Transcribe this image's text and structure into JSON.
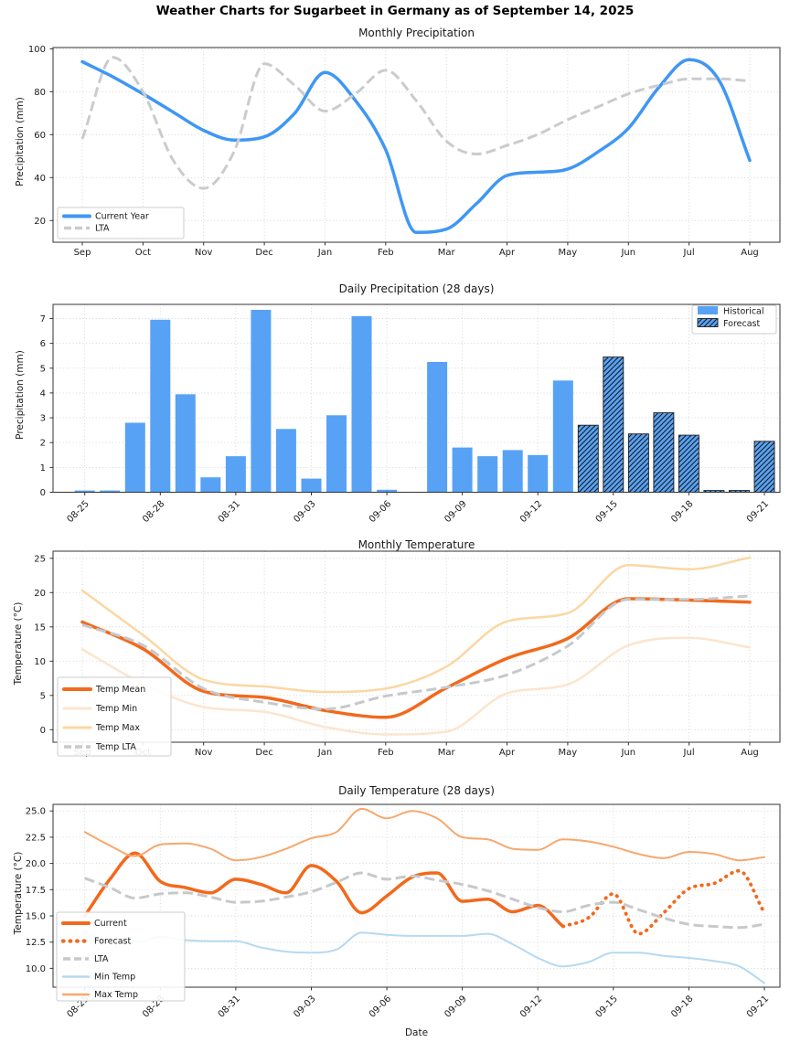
{
  "title": "Weather Charts for Sugarbeet in Germany as of September 14, 2025",
  "chart_data": [
    {
      "id": "monthly-precipitation",
      "type": "line",
      "title": "Monthly Precipitation",
      "ylabel": "Precipitation (mm)",
      "x_labels": [
        "Sep",
        "Oct",
        "Nov",
        "Dec",
        "Jan",
        "Feb",
        "Mar",
        "Apr",
        "May",
        "Jun",
        "Jul",
        "Aug"
      ],
      "yticks": [
        20,
        40,
        60,
        80,
        100
      ],
      "ylim": [
        9.9,
        100.6
      ],
      "legend_position": "lower left",
      "sample_step_months": 0.5,
      "series": [
        {
          "name": "Current Year",
          "color": "#3f97f3",
          "style": "solid",
          "width": 3.5,
          "monthly_values": [
            94,
            79,
            62,
            59,
            89,
            53,
            16,
            41,
            44,
            63,
            95,
            48
          ],
          "samples": [
            94,
            87,
            79,
            70.5,
            62,
            57.5,
            59,
            70,
            89,
            76,
            53,
            14.5,
            16,
            28,
            41,
            42.5,
            44,
            52,
            63,
            82,
            95,
            85,
            48
          ]
        },
        {
          "name": "LTA",
          "color": "#c9cccf",
          "style": "dashed",
          "width": 3,
          "monthly_values": [
            58,
            80,
            35,
            93,
            71,
            90,
            57,
            55,
            67,
            79,
            86,
            85
          ],
          "samples": [
            58,
            96,
            80,
            48,
            35,
            52,
            93,
            83,
            71,
            79,
            90,
            76,
            57,
            51,
            55,
            60,
            67,
            73,
            79,
            83,
            86,
            86,
            85
          ]
        }
      ]
    },
    {
      "id": "daily-precipitation",
      "type": "bar",
      "title": "Daily Precipitation (28 days)",
      "ylabel": "Precipitation (mm)",
      "dates": [
        "08-25",
        "08-26",
        "08-27",
        "08-28",
        "08-29",
        "08-30",
        "08-31",
        "09-01",
        "09-02",
        "09-03",
        "09-04",
        "09-05",
        "09-06",
        "09-07",
        "09-08",
        "09-09",
        "09-10",
        "09-11",
        "09-12",
        "09-13",
        "09-14",
        "09-15",
        "09-16",
        "09-17",
        "09-18",
        "09-19",
        "09-20",
        "09-21"
      ],
      "xtick_labels": [
        "08-25",
        "08-28",
        "08-31",
        "09-03",
        "09-06",
        "09-09",
        "09-12",
        "09-15",
        "09-18",
        "09-21"
      ],
      "xtick_indices": [
        0,
        3,
        6,
        9,
        12,
        15,
        18,
        21,
        24,
        27
      ],
      "yticks": [
        0,
        1,
        2,
        3,
        4,
        5,
        6,
        7
      ],
      "ylim": [
        0,
        7.57
      ],
      "values": [
        0.07,
        0.07,
        2.8,
        6.95,
        3.95,
        0.6,
        1.45,
        7.35,
        2.55,
        0.55,
        3.1,
        7.1,
        0.1,
        0,
        5.25,
        1.8,
        1.45,
        1.7,
        1.5,
        4.5,
        2.7,
        5.45,
        2.35,
        3.2,
        2.3,
        0.07,
        0.07,
        2.05
      ],
      "historical_count": 20,
      "bar_color": "#57a2f5",
      "hatch_color": "#1c1c1c",
      "legend": [
        {
          "name": "Historical",
          "swatch": "solid"
        },
        {
          "name": "Forecast",
          "swatch": "hatched"
        }
      ],
      "legend_position": "upper right"
    },
    {
      "id": "monthly-temperature",
      "type": "line",
      "title": "Monthly Temperature",
      "ylabel": "Temperature (°C)",
      "x_labels": [
        "Sep",
        "Oct",
        "Nov",
        "Dec",
        "Jan",
        "Feb",
        "Mar",
        "Apr",
        "May",
        "Jun",
        "Jul",
        "Aug"
      ],
      "yticks": [
        0,
        5,
        10,
        15,
        20,
        25
      ],
      "ylim": [
        -1.83,
        26.04
      ],
      "legend_position": "lower left",
      "series": [
        {
          "name": "Temp Mean",
          "color": "#f2691c",
          "style": "solid",
          "width": 3.5,
          "values": [
            15.7,
            11.8,
            5.6,
            4.7,
            2.8,
            1.8,
            6.1,
            10.4,
            13.3,
            19.1,
            18.9,
            18.6
          ]
        },
        {
          "name": "Temp Min",
          "color": "#fce5ce",
          "style": "solid",
          "width": 2.5,
          "values": [
            11.7,
            6.7,
            3.3,
            2.6,
            0.4,
            -0.7,
            -0.3,
            5.3,
            6.6,
            12.3,
            13.4,
            12.0
          ]
        },
        {
          "name": "Temp Max",
          "color": "#fbd7a2",
          "style": "solid",
          "width": 2.5,
          "values": [
            20.3,
            13.8,
            7.3,
            6.3,
            5.5,
            6.0,
            9.2,
            15.8,
            17.0,
            24.0,
            23.4,
            25.1
          ]
        },
        {
          "name": "Temp LTA",
          "color": "#c6c9cc",
          "style": "dashed",
          "width": 3,
          "values": [
            15.3,
            12.3,
            6.0,
            4.0,
            3.0,
            4.9,
            6.2,
            8.0,
            12.2,
            19.0,
            19.0,
            19.5
          ]
        }
      ]
    },
    {
      "id": "daily-temperature",
      "type": "line",
      "title": "Daily Temperature (28 days)",
      "ylabel": "Temperature (°C)",
      "xlabel": "Date",
      "dates": [
        "08-25",
        "08-26",
        "08-27",
        "08-28",
        "08-29",
        "08-30",
        "08-31",
        "09-01",
        "09-02",
        "09-03",
        "09-04",
        "09-05",
        "09-06",
        "09-07",
        "09-08",
        "09-09",
        "09-10",
        "09-11",
        "09-12",
        "09-13",
        "09-14",
        "09-15",
        "09-16",
        "09-17",
        "09-18",
        "09-19",
        "09-20",
        "09-21"
      ],
      "xtick_labels": [
        "08-25",
        "08-28",
        "08-31",
        "09-03",
        "09-06",
        "09-09",
        "09-12",
        "09-15",
        "09-18",
        "09-21"
      ],
      "xtick_indices": [
        0,
        3,
        6,
        9,
        12,
        15,
        18,
        21,
        24,
        27
      ],
      "yticks": [
        10.0,
        12.5,
        15.0,
        17.5,
        20.0,
        22.5,
        25.0
      ],
      "ytick_decimals": 1,
      "ylim": [
        8.21,
        25.63
      ],
      "legend_position": "lower left",
      "series": [
        {
          "name": "Current",
          "color": "#f2691c",
          "style": "solid",
          "width": 3.5,
          "start_index": 0,
          "values": [
            15.0,
            18.5,
            21.0,
            18.3,
            17.7,
            17.2,
            18.5,
            18.0,
            17.2,
            19.8,
            18.3,
            15.3,
            16.9,
            18.7,
            19.1,
            16.4,
            16.6,
            15.4,
            16.0,
            14.0
          ]
        },
        {
          "name": "Forecast",
          "color": "#f2691c",
          "style": "dotted",
          "width": 3.8,
          "start_index": 20,
          "connect_from": "Current",
          "values": [
            14.8,
            17.1,
            13.3,
            15.3,
            17.6,
            18.1,
            19.3,
            15.3
          ]
        },
        {
          "name": "LTA",
          "color": "#c6c9cc",
          "style": "dashed",
          "width": 3,
          "start_index": 0,
          "values": [
            18.6,
            17.7,
            16.7,
            17.1,
            17.2,
            16.8,
            16.3,
            16.4,
            16.8,
            17.3,
            18.2,
            19.1,
            18.5,
            18.8,
            18.4,
            18.0,
            17.4,
            16.6,
            15.8,
            15.4,
            16.0,
            16.3,
            15.6,
            14.8,
            14.2,
            14.0,
            13.9,
            14.2
          ]
        },
        {
          "name": "Min Temp",
          "color": "#b5d9f2",
          "style": "solid",
          "width": 2,
          "start_index": 0,
          "values": [
            13.5,
            12.6,
            12.5,
            13.0,
            12.7,
            12.6,
            12.6,
            12.0,
            11.6,
            11.5,
            11.8,
            13.4,
            13.2,
            13.1,
            13.1,
            13.1,
            13.3,
            12.3,
            11.0,
            10.2,
            10.6,
            11.5,
            11.5,
            11.2,
            11.0,
            10.7,
            10.2,
            8.6
          ]
        },
        {
          "name": "Max Temp",
          "color": "#f8a76d",
          "style": "solid",
          "width": 2,
          "start_index": 0,
          "values": [
            23.0,
            21.7,
            20.7,
            21.8,
            21.9,
            21.4,
            20.3,
            20.6,
            21.4,
            22.4,
            23.0,
            25.2,
            24.3,
            25.0,
            24.3,
            22.5,
            22.3,
            21.4,
            21.3,
            22.3,
            22.1,
            21.6,
            20.9,
            20.5,
            21.1,
            20.9,
            20.3,
            20.6
          ]
        }
      ]
    }
  ]
}
